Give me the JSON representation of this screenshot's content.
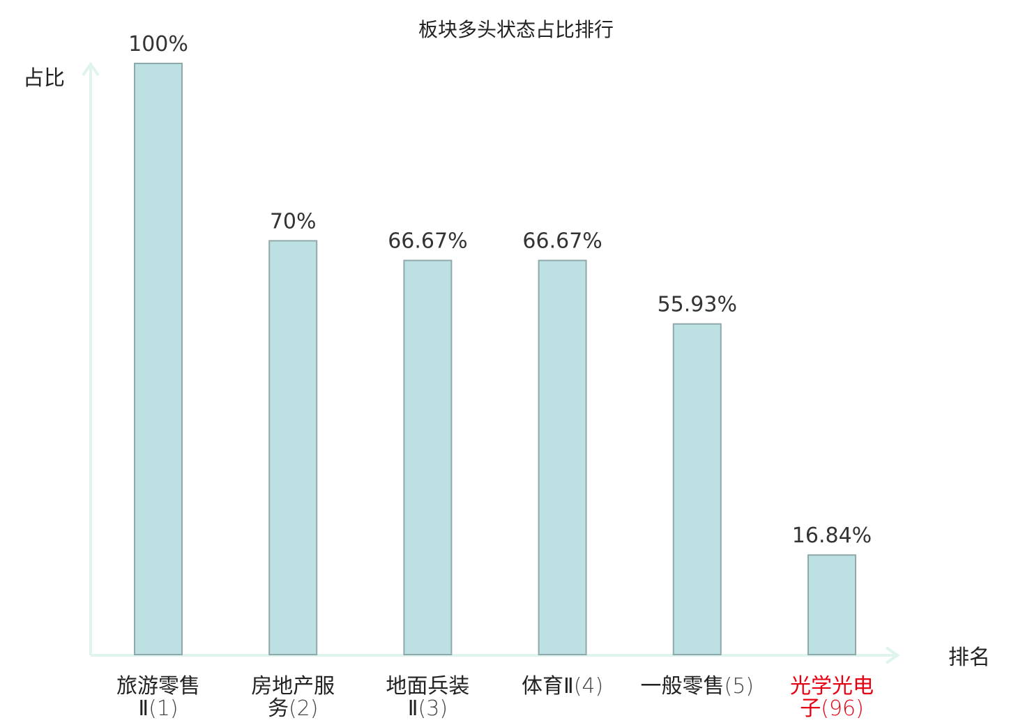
{
  "chart_data": {
    "type": "bar",
    "title": "板块多头状态占比排行",
    "xlabel": "排名",
    "ylabel": "占比",
    "ylim": [
      0,
      100
    ],
    "grid": false,
    "bar_color": "#bde0e3",
    "highlight_color": "#e60012",
    "categories": [
      {
        "name_line1": "旅游零售",
        "name_line2": "Ⅱ",
        "rank": "(1)",
        "highlight": false
      },
      {
        "name_line1": "房地产服",
        "name_line2": "务",
        "rank": "(2)",
        "highlight": false
      },
      {
        "name_line1": "地面兵装",
        "name_line2": "Ⅱ",
        "rank": "(3)",
        "highlight": false
      },
      {
        "name_line1": "体育Ⅱ",
        "name_line2": "",
        "rank": "(4)",
        "highlight": false
      },
      {
        "name_line1": "一般零售",
        "name_line2": "",
        "rank": "(5)",
        "highlight": false
      },
      {
        "name_line1": "光学光电",
        "name_line2": "子",
        "rank": "(96)",
        "highlight": true
      }
    ],
    "values": [
      100,
      70,
      66.67,
      66.67,
      55.93,
      16.84
    ],
    "value_labels": [
      "100%",
      "70%",
      "66.67%",
      "66.67%",
      "55.93%",
      "16.84%"
    ]
  }
}
